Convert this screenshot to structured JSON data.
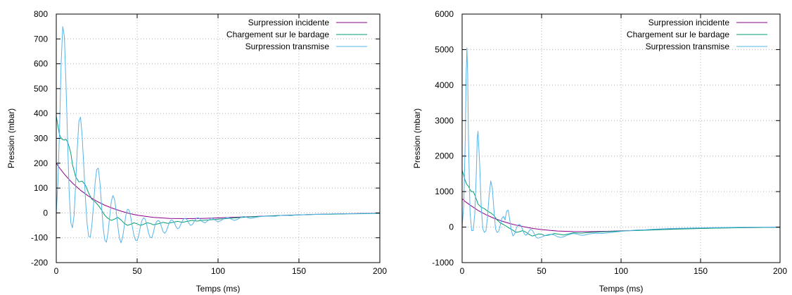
{
  "chart_data": [
    {
      "type": "line",
      "title": "",
      "xlabel": "Temps (ms)",
      "ylabel": "Pression (mbar)",
      "xlim": [
        0,
        200
      ],
      "ylim": [
        -200,
        800
      ],
      "xticks": [
        0,
        50,
        100,
        150,
        200
      ],
      "yticks": [
        -200,
        -100,
        0,
        100,
        200,
        300,
        400,
        500,
        600,
        700,
        800
      ],
      "grid": true,
      "legend_position": "top-right",
      "series": [
        {
          "name": "Surpression incidente",
          "color": "#8b008b",
          "x": [
            0,
            2,
            5,
            8,
            10,
            15,
            20,
            25,
            30,
            35,
            40,
            45,
            50,
            60,
            70,
            80,
            90,
            100,
            120,
            140,
            160,
            180,
            200
          ],
          "y": [
            200,
            181,
            156,
            134,
            120,
            91,
            67,
            47,
            31,
            18,
            7,
            -2,
            -9,
            -18,
            -22,
            -23,
            -22,
            -20,
            -15,
            -10,
            -6,
            -3,
            -1
          ]
        },
        {
          "name": "Chargement sur le bardage",
          "color": "#009e73",
          "x": [
            0,
            1,
            2,
            3,
            4,
            5,
            6,
            7,
            8,
            9,
            10,
            12,
            14,
            16,
            18,
            20,
            22,
            24,
            26,
            28,
            30,
            32,
            34,
            36,
            38,
            40,
            42,
            44,
            46,
            48,
            50,
            52,
            54,
            56,
            58,
            60,
            63,
            66,
            69,
            72,
            75,
            78,
            81,
            84,
            87,
            90,
            95,
            100,
            105,
            110,
            115,
            120,
            130,
            140,
            150,
            160,
            170,
            180,
            190,
            200
          ],
          "y": [
            390,
            350,
            315,
            300,
            295,
            293,
            296,
            285,
            265,
            240,
            195,
            145,
            125,
            128,
            112,
            80,
            55,
            45,
            30,
            12,
            -10,
            -22,
            -30,
            -25,
            -18,
            -28,
            -42,
            -50,
            -46,
            -40,
            -44,
            -50,
            -46,
            -40,
            -42,
            -48,
            -44,
            -38,
            -42,
            -38,
            -34,
            -38,
            -34,
            -30,
            -33,
            -30,
            -28,
            -25,
            -23,
            -20,
            -18,
            -16,
            -13,
            -10,
            -8,
            -6,
            -5,
            -4,
            -3,
            -2
          ]
        },
        {
          "name": "Surpression transmise",
          "color": "#56b4e9",
          "x": [
            0,
            1,
            2,
            3,
            4,
            5,
            6,
            7,
            8,
            9,
            10,
            11,
            12,
            13,
            14,
            15,
            16,
            17,
            18,
            19,
            20,
            21,
            22,
            23,
            24,
            25,
            26,
            27,
            28,
            29,
            30,
            31,
            32,
            33,
            34,
            35,
            36,
            37,
            38,
            39,
            40,
            41,
            42,
            43,
            44,
            45,
            46,
            47,
            48,
            49,
            50,
            51,
            52,
            53,
            54,
            55,
            56,
            57,
            58,
            59,
            60,
            61,
            62,
            63,
            64,
            65,
            66,
            67,
            68,
            69,
            70,
            71,
            72,
            73,
            74,
            75,
            76,
            77,
            78,
            79,
            80,
            81,
            82,
            83,
            84,
            85,
            86,
            87,
            88,
            89,
            90,
            92,
            94,
            96,
            98,
            100,
            102,
            104,
            106,
            108,
            110,
            112,
            114,
            116,
            118,
            120,
            125,
            130,
            135,
            140,
            145,
            150,
            155,
            160,
            165,
            170,
            175,
            180,
            185,
            190,
            195,
            200
          ],
          "y": [
            0,
            120,
            330,
            600,
            750,
            710,
            520,
            290,
            80,
            -40,
            -60,
            -10,
            120,
            260,
            370,
            385,
            310,
            190,
            60,
            -40,
            -95,
            -98,
            -50,
            30,
            120,
            175,
            180,
            120,
            30,
            -60,
            -110,
            -118,
            -80,
            -15,
            45,
            70,
            55,
            10,
            -50,
            -100,
            -120,
            -100,
            -55,
            -10,
            15,
            12,
            -15,
            -55,
            -90,
            -110,
            -112,
            -90,
            -55,
            -30,
            -20,
            -25,
            -50,
            -80,
            -98,
            -100,
            -80,
            -50,
            -35,
            -30,
            -35,
            -55,
            -75,
            -82,
            -74,
            -55,
            -38,
            -28,
            -30,
            -40,
            -55,
            -64,
            -60,
            -46,
            -32,
            -22,
            -22,
            -30,
            -42,
            -50,
            -48,
            -38,
            -27,
            -20,
            -20,
            -26,
            -34,
            -40,
            -30,
            -20,
            -28,
            -36,
            -30,
            -22,
            -18,
            -24,
            -30,
            -26,
            -18,
            -14,
            -18,
            -22,
            -16,
            -12,
            -14,
            -9,
            -11,
            -7,
            -8,
            -5,
            -6,
            -4,
            -4,
            -3,
            -3,
            -2,
            -2,
            -1
          ]
        }
      ]
    },
    {
      "type": "line",
      "title": "",
      "xlabel": "Temps (ms)",
      "ylabel": "Pression (mbar)",
      "xlim": [
        0,
        200
      ],
      "ylim": [
        -1000,
        6000
      ],
      "xticks": [
        0,
        50,
        100,
        150,
        200
      ],
      "yticks": [
        -1000,
        0,
        1000,
        2000,
        3000,
        4000,
        5000,
        6000
      ],
      "grid": true,
      "legend_position": "top-right",
      "series": [
        {
          "name": "Surpression incidente",
          "color": "#8b008b",
          "x": [
            0,
            2,
            5,
            8,
            10,
            15,
            20,
            25,
            30,
            35,
            40,
            45,
            50,
            60,
            70,
            80,
            90,
            100,
            120,
            140,
            160,
            180,
            200
          ],
          "y": [
            800,
            720,
            620,
            530,
            470,
            350,
            250,
            170,
            100,
            45,
            0,
            -40,
            -70,
            -110,
            -125,
            -128,
            -120,
            -105,
            -75,
            -45,
            -25,
            -12,
            -5
          ]
        },
        {
          "name": "Chargement sur le bardage",
          "color": "#009e73",
          "x": [
            0,
            1,
            2,
            3,
            4,
            5,
            6,
            7,
            8,
            9,
            10,
            12,
            14,
            16,
            18,
            20,
            22,
            24,
            26,
            28,
            30,
            32,
            34,
            36,
            38,
            40,
            42,
            44,
            46,
            48,
            50,
            52,
            55,
            58,
            61,
            64,
            67,
            70,
            75,
            80,
            85,
            90,
            95,
            100,
            110,
            120,
            130,
            140,
            150,
            160,
            170,
            180,
            190,
            200
          ],
          "y": [
            1600,
            1450,
            1300,
            1200,
            1150,
            1050,
            1000,
            1000,
            900,
            780,
            650,
            560,
            520,
            450,
            400,
            330,
            200,
            120,
            70,
            20,
            -40,
            -90,
            -150,
            -130,
            -100,
            -140,
            -200,
            -250,
            -230,
            -190,
            -200,
            -240,
            -220,
            -180,
            -200,
            -220,
            -190,
            -160,
            -170,
            -150,
            -140,
            -130,
            -120,
            -110,
            -95,
            -80,
            -65,
            -50,
            -38,
            -28,
            -20,
            -14,
            -8,
            -4
          ]
        },
        {
          "name": "Surpression transmise",
          "color": "#56b4e9",
          "x": [
            0,
            1,
            2,
            2.5,
            3,
            3.5,
            4,
            5,
            6,
            7,
            8,
            9,
            9.5,
            10,
            11,
            12,
            13,
            14,
            15,
            16,
            17,
            18,
            19,
            20,
            21,
            22,
            23,
            24,
            25,
            26,
            27,
            28,
            29,
            30,
            31,
            32,
            33,
            34,
            35,
            36,
            37,
            38,
            39,
            40,
            41,
            42,
            43,
            44,
            45,
            46,
            47,
            48,
            50,
            52,
            54,
            56,
            58,
            60,
            62,
            64,
            66,
            68,
            70,
            72,
            74,
            76,
            78,
            80,
            84,
            88,
            92,
            96,
            100,
            105,
            110,
            115,
            120,
            130,
            140,
            150,
            160,
            170,
            175,
            180,
            190,
            200
          ],
          "y": [
            0,
            600,
            2500,
            4200,
            5050,
            4300,
            2500,
            400,
            -100,
            -100,
            400,
            1600,
            2500,
            2700,
            1800,
            600,
            -50,
            -150,
            -100,
            300,
            900,
            1300,
            1100,
            500,
            -50,
            -150,
            -120,
            50,
            250,
            300,
            200,
            450,
            480,
            200,
            -100,
            -250,
            -200,
            -50,
            50,
            80,
            40,
            -60,
            -180,
            -230,
            -200,
            -120,
            -60,
            -80,
            -150,
            -250,
            -300,
            -310,
            -280,
            -240,
            -210,
            -200,
            -220,
            -270,
            -290,
            -270,
            -230,
            -200,
            -180,
            -190,
            -220,
            -230,
            -210,
            -190,
            -170,
            -180,
            -160,
            -140,
            -120,
            -100,
            -80,
            -75,
            -60,
            -40,
            -30,
            -20,
            -12,
            -8,
            -5,
            -3,
            -1,
            0
          ]
        }
      ]
    }
  ]
}
